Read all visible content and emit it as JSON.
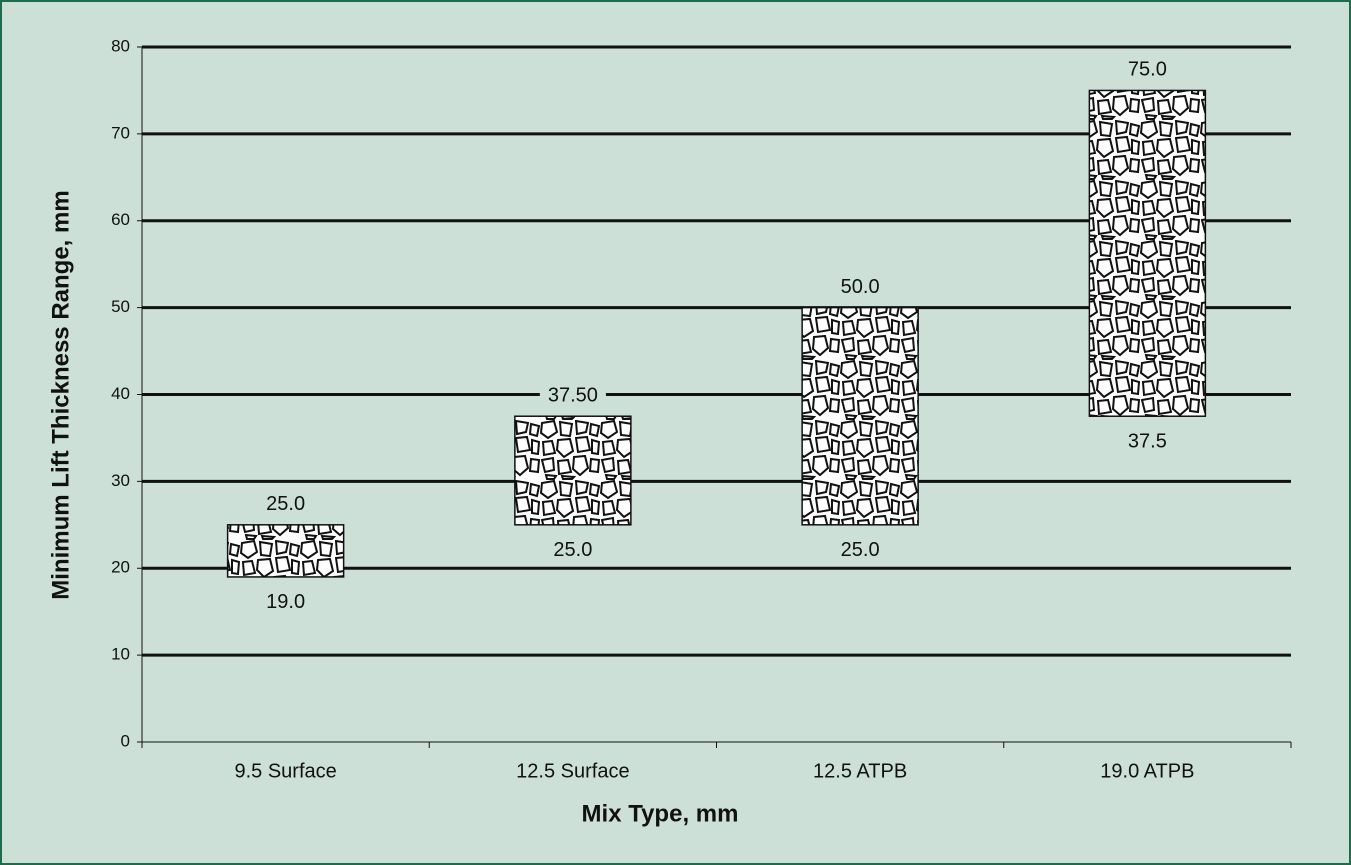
{
  "chart_data": {
    "type": "range_bar",
    "x_label": "Mix Type, mm",
    "y_label": "Minimum Lift Thickness Range, mm",
    "categories": [
      "9.5 Surface",
      "12.5 Surface",
      "12.5 ATPB",
      "19.0 ATPB"
    ],
    "low": {
      "values": [
        19,
        25,
        25,
        37.5
      ],
      "value_labels": [
        "19.0",
        "25.0",
        "25.0",
        "37.5"
      ]
    },
    "high": {
      "values": [
        25,
        37.5,
        50,
        75
      ],
      "value_labels": [
        "25.0",
        "37.50",
        "50.0",
        "75.0"
      ]
    },
    "color": "#ffffff",
    "ylim": [
      0,
      80
    ],
    "yticks": [
      0,
      10,
      20,
      30,
      40,
      50,
      60,
      70,
      80
    ],
    "grid": true
  }
}
